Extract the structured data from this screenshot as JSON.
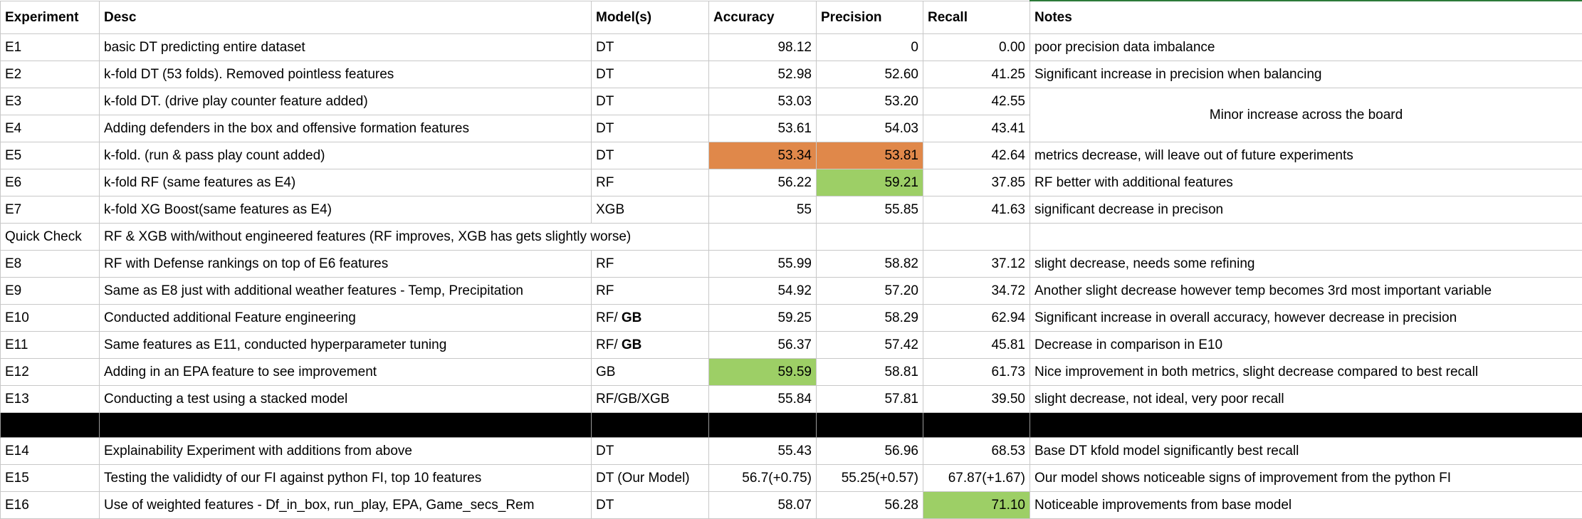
{
  "columns": [
    "Experiment",
    "Desc",
    "Model(s)",
    "Accuracy",
    "Precision",
    "Recall",
    "Notes"
  ],
  "colors": {
    "orange_highlight": "#e0884a",
    "green_highlight": "#9dcf66",
    "separator": "#000000"
  },
  "rows": [
    {
      "experiment": "E1",
      "desc": "basic DT predicting entire dataset",
      "model": "DT",
      "accuracy": "98.12",
      "precision": "0",
      "recall": "0.00",
      "notes": "poor precision data imbalance"
    },
    {
      "experiment": "E2",
      "desc": "k-fold DT (53 folds). Removed pointless features",
      "model": "DT",
      "accuracy": "52.98",
      "precision": "52.60",
      "recall": "41.25",
      "notes": "Significant increase in precision when balancing"
    },
    {
      "experiment": "E3",
      "desc": "k-fold DT. (drive play counter feature added)",
      "model": "DT",
      "accuracy": "53.03",
      "precision": "53.20",
      "recall": "42.55",
      "notes": "Minor increase across the board"
    },
    {
      "experiment": "E4",
      "desc": "Adding defenders in the box and offensive formation features",
      "model": "DT",
      "accuracy": "53.61",
      "precision": "54.03",
      "recall": "43.41"
    },
    {
      "experiment": "E5",
      "desc": "k-fold. (run & pass play count added)",
      "model": "DT",
      "accuracy": "53.34",
      "precision": "53.81",
      "recall": "42.64",
      "notes": "metrics decrease, will leave out of future experiments"
    },
    {
      "experiment": "E6",
      "desc": "k-fold RF (same features as E4)",
      "model": "RF",
      "accuracy": "56.22",
      "precision": "59.21",
      "recall": "37.85",
      "notes": "RF better with additional features"
    },
    {
      "experiment": "E7",
      "desc": "k-fold XG Boost(same features as E4)",
      "model": "XGB",
      "accuracy": "55",
      "precision": "55.85",
      "recall": "41.63",
      "notes": "significant decrease in precison"
    },
    {
      "experiment": "Quick Check",
      "desc": "RF & XGB with/without engineered features (RF improves, XGB has gets slightly worse)"
    },
    {
      "experiment": "E8",
      "desc": "RF with Defense rankings on top of E6 features",
      "model": "RF",
      "accuracy": "55.99",
      "precision": "58.82",
      "recall": "37.12",
      "notes": "slight decrease, needs some refining"
    },
    {
      "experiment": "E9",
      "desc": "Same as E8 just with additional weather features - Temp, Precipitation",
      "model": "RF",
      "accuracy": "54.92",
      "precision": "57.20",
      "recall": "34.72",
      "notes": "Another slight decrease however temp becomes 3rd most important variable"
    },
    {
      "experiment": "E10",
      "desc": "Conducted additional Feature engineering",
      "model": "RF/",
      "model_bold": "GB",
      "accuracy": "59.25",
      "precision": "58.29",
      "recall": "62.94",
      "notes": "Significant increase in overall accuracy, however decrease in precision"
    },
    {
      "experiment": "E11",
      "desc": "Same features as E11, conducted hyperparameter tuning",
      "model": "RF/",
      "model_bold": "GB",
      "accuracy": "56.37",
      "precision": "57.42",
      "recall": "45.81",
      "notes": "Decrease in comparison in E10"
    },
    {
      "experiment": "E12",
      "desc": "Adding in an EPA feature to see improvement",
      "model": "GB",
      "accuracy": "59.59",
      "precision": "58.81",
      "recall": "61.73",
      "notes": "Nice improvement in both metrics, slight decrease compared to best recall"
    },
    {
      "experiment": "E13",
      "desc": "Conducting a test using a stacked model",
      "model": "RF/GB/XGB",
      "accuracy": "55.84",
      "precision": "57.81",
      "recall": "39.50",
      "notes": "slight decrease, not ideal, very poor recall"
    },
    {
      "experiment": "E14",
      "desc": "Explainability Experiment with additions from above",
      "model": "DT",
      "accuracy": "55.43",
      "precision": "56.96",
      "recall": "68.53",
      "notes": "Base DT kfold model significantly best recall"
    },
    {
      "experiment": "E15",
      "desc": "Testing the valididty of our FI against python FI, top 10 features",
      "model": "DT (Our Model)",
      "accuracy": "56.7(+0.75)",
      "precision": "55.25(+0.57)",
      "recall": "67.87(+1.67)",
      "notes": "Our model shows noticeable signs of improvement from the python FI"
    },
    {
      "experiment": "E16",
      "desc": "Use of weighted features - Df_in_box, run_play, EPA, Game_secs_Rem",
      "model": "DT",
      "accuracy": "58.07",
      "precision": "56.28",
      "recall": "71.10",
      "notes": "Noticeable improvements from base model"
    }
  ]
}
